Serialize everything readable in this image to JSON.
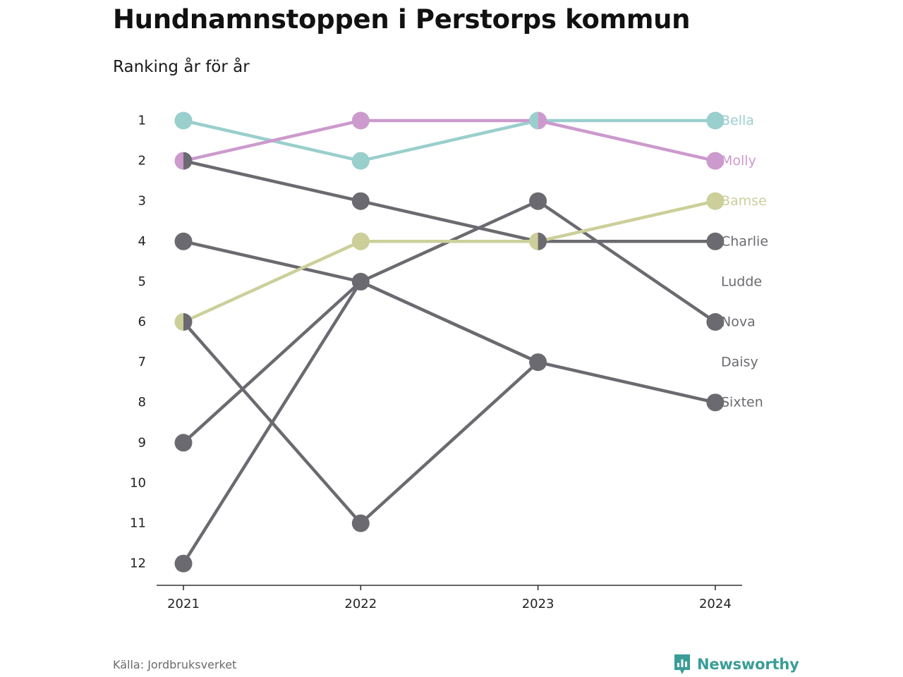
{
  "header": {
    "title": "Hundnamnstoppen i Perstorps kommun",
    "subtitle": "Ranking år för år"
  },
  "footer": {
    "source": "Källa: Jordbruksverket",
    "brand": "Newsworthy",
    "brand_icon": "newsworthy-logo-icon"
  },
  "chart_data": {
    "type": "line",
    "subtype": "bump",
    "x": [
      "2021",
      "2022",
      "2023",
      "2024"
    ],
    "ylim": [
      1,
      12
    ],
    "y_reversed": true,
    "y_ticks": [
      "1",
      "2",
      "3",
      "4",
      "5",
      "6",
      "7",
      "8",
      "9",
      "10",
      "11",
      "12"
    ],
    "grid": false,
    "legend": "end-labels",
    "series": [
      {
        "name": "Bella",
        "color": "#99cfcd",
        "values": [
          1,
          2,
          1,
          1
        ]
      },
      {
        "name": "Molly",
        "color": "#cc9acd",
        "values": [
          2,
          1,
          1,
          2
        ]
      },
      {
        "name": "Bamse",
        "color": "#cccf99",
        "values": [
          6,
          4,
          4,
          3
        ]
      },
      {
        "name": "Charlie",
        "color": "#6b6a70",
        "values": [
          2,
          3,
          4,
          4
        ]
      },
      {
        "name": "Ludde",
        "color": "#6b6a70",
        "values": [
          4,
          5,
          7,
          null
        ]
      },
      {
        "name": "Nova",
        "color": "#6b6a70",
        "values": [
          9,
          5,
          3,
          6
        ]
      },
      {
        "name": "Daisy",
        "color": "#6b6a70",
        "values": [
          6,
          11,
          7,
          null
        ]
      },
      {
        "name": "Sixten",
        "color": "#6b6a70",
        "values": [
          12,
          5,
          7,
          8
        ]
      }
    ],
    "end_labels": [
      "Bella",
      "Molly",
      "Bamse",
      "Charlie",
      "Ludde",
      "Nova",
      "Daisy",
      "Sixten"
    ],
    "end_label_ranks": [
      1,
      2,
      3,
      4,
      5,
      6,
      7,
      8
    ]
  }
}
